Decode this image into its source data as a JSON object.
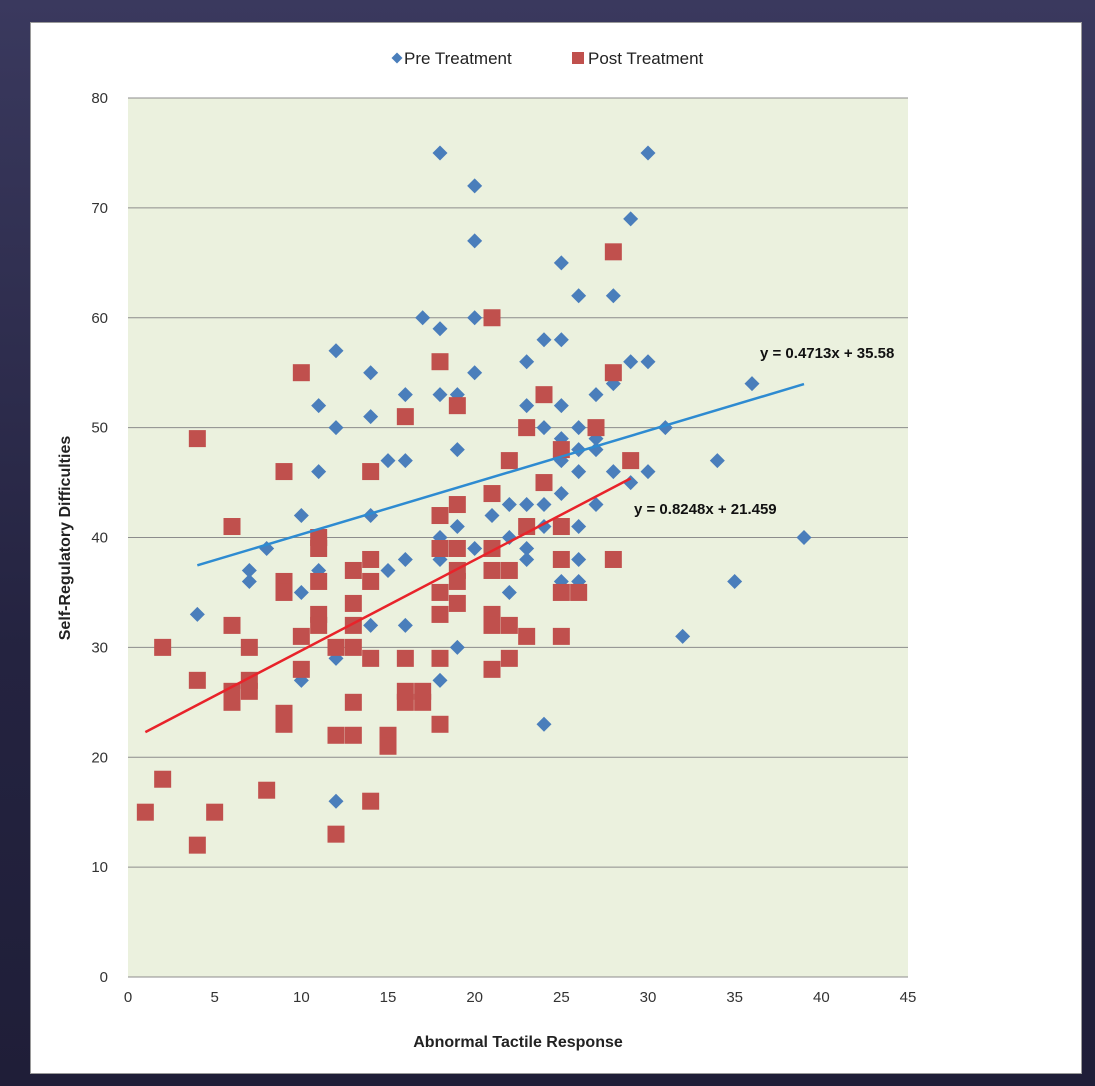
{
  "chart_data": {
    "type": "scatter",
    "xlabel": "Abnormal Tactile Response",
    "ylabel": "Self-Regulatory Difficulties",
    "xlim": [
      0,
      45
    ],
    "ylim": [
      0,
      80
    ],
    "x_ticks": [
      "0",
      "5",
      "10",
      "15",
      "20",
      "25",
      "30",
      "35",
      "40",
      "45"
    ],
    "y_ticks": [
      "0",
      "10",
      "20",
      "30",
      "40",
      "50",
      "60",
      "70",
      "80"
    ],
    "grid": "horizontal",
    "plot_background": "#ebf1de",
    "legend_position": "top-center",
    "series": [
      {
        "name": "Pre Treatment",
        "marker": "diamond",
        "color": "#4a7ebb",
        "points": [
          [
            4,
            33
          ],
          [
            7,
            36
          ],
          [
            7,
            37
          ],
          [
            8,
            39
          ],
          [
            10,
            42
          ],
          [
            10,
            35
          ],
          [
            10,
            27
          ],
          [
            11,
            52
          ],
          [
            11,
            46
          ],
          [
            11,
            37
          ],
          [
            12,
            57
          ],
          [
            12,
            50
          ],
          [
            12,
            29
          ],
          [
            12,
            16
          ],
          [
            14,
            55
          ],
          [
            14,
            51
          ],
          [
            14,
            42
          ],
          [
            14,
            32
          ],
          [
            15,
            47
          ],
          [
            15,
            37
          ],
          [
            16,
            53
          ],
          [
            16,
            47
          ],
          [
            16,
            38
          ],
          [
            16,
            32
          ],
          [
            17,
            60
          ],
          [
            18,
            75
          ],
          [
            18,
            59
          ],
          [
            18,
            53
          ],
          [
            18,
            40
          ],
          [
            18,
            38
          ],
          [
            18,
            27
          ],
          [
            19,
            53
          ],
          [
            19,
            48
          ],
          [
            19,
            41
          ],
          [
            19,
            30
          ],
          [
            20,
            72
          ],
          [
            20,
            67
          ],
          [
            20,
            60
          ],
          [
            20,
            55
          ],
          [
            20,
            39
          ],
          [
            21,
            42
          ],
          [
            22,
            43
          ],
          [
            22,
            40
          ],
          [
            22,
            35
          ],
          [
            23,
            56
          ],
          [
            23,
            52
          ],
          [
            23,
            43
          ],
          [
            23,
            39
          ],
          [
            23,
            38
          ],
          [
            24,
            58
          ],
          [
            24,
            50
          ],
          [
            24,
            43
          ],
          [
            24,
            41
          ],
          [
            24,
            23
          ],
          [
            25,
            65
          ],
          [
            25,
            58
          ],
          [
            25,
            52
          ],
          [
            25,
            49
          ],
          [
            25,
            47
          ],
          [
            25,
            44
          ],
          [
            25,
            36
          ],
          [
            26,
            62
          ],
          [
            26,
            50
          ],
          [
            26,
            48
          ],
          [
            26,
            46
          ],
          [
            26,
            41
          ],
          [
            26,
            38
          ],
          [
            26,
            36
          ],
          [
            27,
            53
          ],
          [
            27,
            49
          ],
          [
            27,
            48
          ],
          [
            27,
            43
          ],
          [
            28,
            62
          ],
          [
            28,
            54
          ],
          [
            28,
            46
          ],
          [
            29,
            69
          ],
          [
            29,
            56
          ],
          [
            29,
            45
          ],
          [
            30,
            75
          ],
          [
            30,
            56
          ],
          [
            30,
            46
          ],
          [
            31,
            50
          ],
          [
            32,
            31
          ],
          [
            34,
            47
          ],
          [
            35,
            36
          ],
          [
            36,
            54
          ],
          [
            39,
            40
          ]
        ],
        "trendline": {
          "slope": 0.4713,
          "intercept": 35.58,
          "x_range": [
            4,
            39
          ],
          "color": "#2e8bd1",
          "equation": "y = 0.4713x + 35.58"
        }
      },
      {
        "name": "Post Treatment",
        "marker": "square",
        "color": "#c0504d",
        "points": [
          [
            1,
            15
          ],
          [
            2,
            30
          ],
          [
            2,
            18
          ],
          [
            4,
            49
          ],
          [
            4,
            27
          ],
          [
            4,
            12
          ],
          [
            5,
            15
          ],
          [
            6,
            41
          ],
          [
            6,
            32
          ],
          [
            6,
            26
          ],
          [
            6,
            25
          ],
          [
            7,
            30
          ],
          [
            7,
            27
          ],
          [
            7,
            26
          ],
          [
            8,
            17
          ],
          [
            9,
            46
          ],
          [
            9,
            36
          ],
          [
            9,
            35
          ],
          [
            9,
            24
          ],
          [
            9,
            23
          ],
          [
            10,
            55
          ],
          [
            10,
            31
          ],
          [
            10,
            28
          ],
          [
            11,
            40
          ],
          [
            11,
            39
          ],
          [
            11,
            36
          ],
          [
            11,
            33
          ],
          [
            11,
            32
          ],
          [
            12,
            30
          ],
          [
            12,
            22
          ],
          [
            12,
            13
          ],
          [
            13,
            37
          ],
          [
            13,
            34
          ],
          [
            13,
            32
          ],
          [
            13,
            30
          ],
          [
            13,
            25
          ],
          [
            13,
            22
          ],
          [
            14,
            46
          ],
          [
            14,
            38
          ],
          [
            14,
            36
          ],
          [
            14,
            29
          ],
          [
            14,
            16
          ],
          [
            15,
            22
          ],
          [
            15,
            21
          ],
          [
            16,
            51
          ],
          [
            16,
            29
          ],
          [
            16,
            26
          ],
          [
            16,
            25
          ],
          [
            17,
            26
          ],
          [
            17,
            25
          ],
          [
            18,
            56
          ],
          [
            18,
            42
          ],
          [
            18,
            39
          ],
          [
            18,
            35
          ],
          [
            18,
            33
          ],
          [
            18,
            29
          ],
          [
            18,
            23
          ],
          [
            19,
            52
          ],
          [
            19,
            43
          ],
          [
            19,
            39
          ],
          [
            19,
            37
          ],
          [
            19,
            36
          ],
          [
            19,
            34
          ],
          [
            21,
            60
          ],
          [
            21,
            44
          ],
          [
            21,
            39
          ],
          [
            21,
            37
          ],
          [
            21,
            33
          ],
          [
            21,
            32
          ],
          [
            21,
            28
          ],
          [
            22,
            47
          ],
          [
            22,
            37
          ],
          [
            22,
            32
          ],
          [
            22,
            29
          ],
          [
            23,
            50
          ],
          [
            23,
            41
          ],
          [
            23,
            31
          ],
          [
            24,
            53
          ],
          [
            24,
            45
          ],
          [
            25,
            48
          ],
          [
            25,
            41
          ],
          [
            25,
            38
          ],
          [
            25,
            35
          ],
          [
            25,
            31
          ],
          [
            26,
            35
          ],
          [
            27,
            50
          ],
          [
            28,
            66
          ],
          [
            28,
            55
          ],
          [
            28,
            38
          ],
          [
            29,
            47
          ]
        ],
        "trendline": {
          "slope": 0.8248,
          "intercept": 21.459,
          "x_range": [
            1,
            29
          ],
          "color": "#e8232a",
          "equation": "y = 0.8248x + 21.459"
        }
      }
    ]
  }
}
